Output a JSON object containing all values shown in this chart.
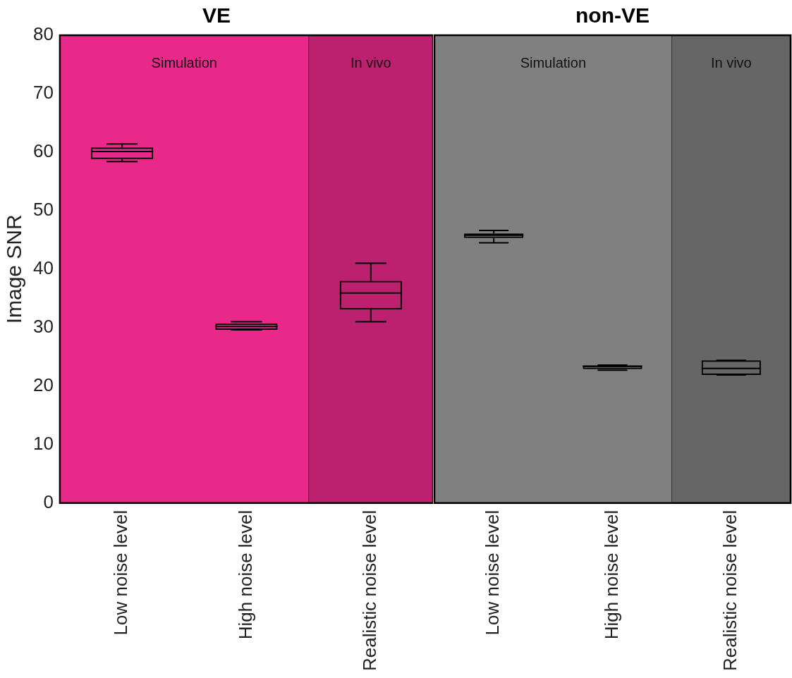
{
  "chart_data": [
    {
      "type": "box",
      "title": "VE",
      "ylabel": "Image SNR",
      "categories": [
        "Low noise level",
        "High noise level",
        "Realistic noise level"
      ],
      "boxes": [
        {
          "low": 58.4,
          "q1": 58.8,
          "median": 60.1,
          "q3": 60.8,
          "high": 61.4
        },
        {
          "low": 29.6,
          "q1": 29.6,
          "median": 30.2,
          "q3": 30.7,
          "high": 31.0
        },
        {
          "low": 31.0,
          "q1": 33.1,
          "median": 35.9,
          "q3": 38.0,
          "high": 41.0
        }
      ],
      "ylim": [
        0,
        80
      ],
      "yticks": [
        0,
        10,
        20,
        30,
        40,
        50,
        60,
        70,
        80
      ],
      "bands": [
        {
          "axis": "x",
          "from": "Low noise level",
          "to": "High noise level",
          "label": "Simulation",
          "color": "#e8298a"
        },
        {
          "axis": "x",
          "from": "Realistic noise level",
          "to": "Realistic noise level",
          "label": "In vivo",
          "color": "#bb216f"
        }
      ]
    },
    {
      "type": "box",
      "title": "non-VE",
      "categories": [
        "Low noise level",
        "High noise level",
        "Realistic noise level"
      ],
      "boxes": [
        {
          "low": 44.5,
          "q1": 45.3,
          "median": 45.8,
          "q3": 46.1,
          "high": 46.6
        },
        {
          "low": 22.7,
          "q1": 22.9,
          "median": 23.4,
          "q3": 23.5,
          "high": 23.6
        },
        {
          "low": 21.9,
          "q1": 21.9,
          "median": 23.0,
          "q3": 24.4,
          "high": 24.4
        }
      ],
      "ylim": [
        0,
        80
      ],
      "yticks": [
        0,
        10,
        20,
        30,
        40,
        50,
        60,
        70,
        80
      ],
      "tick_labels": "x",
      "bands": [
        {
          "axis": "x",
          "from": "Low noise level",
          "to": "High noise level",
          "label": "Simulation",
          "color": "#808080"
        },
        {
          "axis": "x",
          "from": "Realistic noise level",
          "to": "Realistic noise level",
          "label": "In vivo",
          "color": "#666666"
        }
      ]
    }
  ]
}
